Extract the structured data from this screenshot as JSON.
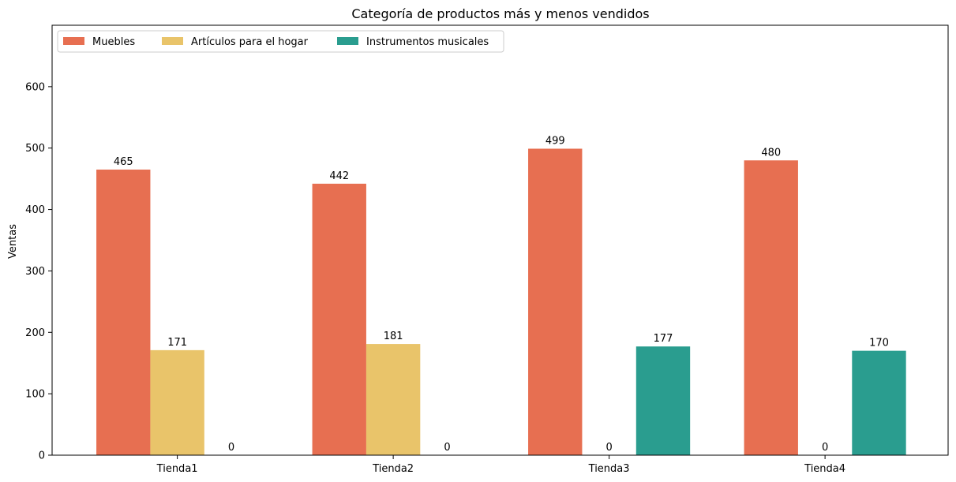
{
  "chart_data": {
    "type": "bar",
    "title": "Categoría de productos más y menos vendidos",
    "xlabel": "",
    "ylabel": "Ventas",
    "ylim": [
      0,
      700
    ],
    "yticks": [
      0,
      100,
      200,
      300,
      400,
      500,
      600
    ],
    "categories": [
      "Tienda1",
      "Tienda2",
      "Tienda3",
      "Tienda4"
    ],
    "series": [
      {
        "name": "Muebles",
        "color": "#e76f51",
        "values": [
          465,
          442,
          499,
          480
        ]
      },
      {
        "name": "Artículos para el hogar",
        "color": "#e9c46a",
        "values": [
          171,
          181,
          0,
          0
        ]
      },
      {
        "name": "Instrumentos musicales",
        "color": "#2a9d8f",
        "values": [
          0,
          0,
          177,
          170
        ]
      }
    ],
    "legend_position": "top-left",
    "grid": false
  }
}
